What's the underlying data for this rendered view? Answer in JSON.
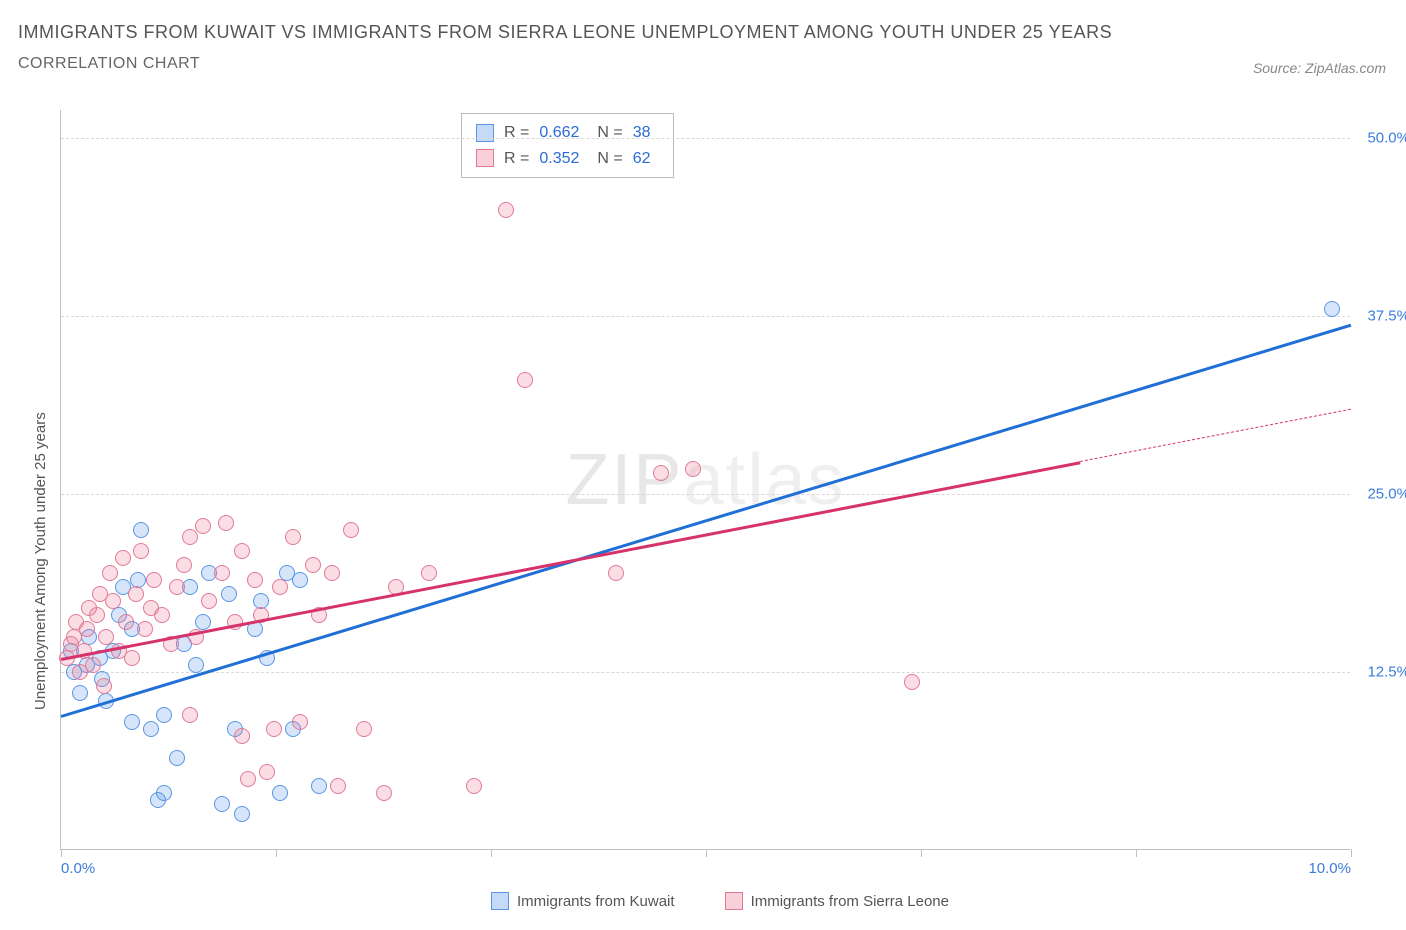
{
  "title": "IMMIGRANTS FROM KUWAIT VS IMMIGRANTS FROM SIERRA LEONE UNEMPLOYMENT AMONG YOUTH UNDER 25 YEARS",
  "subtitle": "CORRELATION CHART",
  "source": "Source: ZipAtlas.com",
  "watermark_a": "ZIP",
  "watermark_b": "atlas",
  "chart": {
    "type": "scatter",
    "background_color": "#ffffff",
    "grid_color": "#d8d8d8",
    "axis_color": "#c0c0c0",
    "ylabel": "Unemployment Among Youth under 25 years",
    "ylabel_fontsize": 15,
    "xlim": [
      0,
      10
    ],
    "ylim": [
      0,
      52
    ],
    "x_tick_positions": [
      0,
      1.67,
      3.33,
      5.0,
      6.67,
      8.33,
      10.0
    ],
    "x_tick_labels_shown": {
      "0": "0.0%",
      "10": "10.0%"
    },
    "y_grid_positions": [
      12.5,
      25,
      37.5,
      50
    ],
    "y_tick_labels": {
      "12.5": "12.5%",
      "25": "25.0%",
      "37.5": "37.5%",
      "50": "50.0%"
    },
    "tick_label_color": "#3b7dd8",
    "marker_radius": 8,
    "marker_border_width": 1.5,
    "series": [
      {
        "name": "Immigrants from Kuwait",
        "fill": "rgba(90,150,230,0.25)",
        "stroke": "#5a96e6",
        "legend_swatch_fill": "rgba(90,150,230,0.35)",
        "legend_swatch_border": "#5a96e6",
        "R": "0.662",
        "N": "38",
        "trend": {
          "x1": 0.0,
          "y1": 9.5,
          "x2": 10.0,
          "y2": 37.0,
          "color": "#1f6fd6",
          "width": 3,
          "x_solid_end": 10.0
        },
        "points": [
          [
            0.08,
            14.0
          ],
          [
            0.1,
            12.5
          ],
          [
            0.15,
            11.0
          ],
          [
            0.2,
            13.0
          ],
          [
            0.22,
            15.0
          ],
          [
            0.3,
            13.5
          ],
          [
            0.32,
            12.0
          ],
          [
            0.35,
            10.5
          ],
          [
            0.4,
            14.0
          ],
          [
            0.45,
            16.5
          ],
          [
            0.48,
            18.5
          ],
          [
            0.55,
            15.5
          ],
          [
            0.6,
            19.0
          ],
          [
            0.62,
            22.5
          ],
          [
            0.7,
            8.5
          ],
          [
            0.75,
            3.5
          ],
          [
            0.8,
            4.0
          ],
          [
            0.8,
            9.5
          ],
          [
            0.9,
            6.5
          ],
          [
            0.95,
            14.5
          ],
          [
            1.0,
            18.5
          ],
          [
            1.1,
            16.0
          ],
          [
            1.15,
            19.5
          ],
          [
            1.25,
            3.2
          ],
          [
            1.35,
            8.5
          ],
          [
            1.4,
            2.5
          ],
          [
            1.5,
            15.5
          ],
          [
            1.55,
            17.5
          ],
          [
            1.7,
            4.0
          ],
          [
            1.75,
            19.5
          ],
          [
            1.8,
            8.5
          ],
          [
            1.85,
            19.0
          ],
          [
            2.0,
            4.5
          ],
          [
            1.6,
            13.5
          ],
          [
            1.3,
            18.0
          ],
          [
            1.05,
            13.0
          ],
          [
            0.55,
            9.0
          ],
          [
            9.85,
            38.0
          ]
        ]
      },
      {
        "name": "Immigrants from Sierra Leone",
        "fill": "rgba(235,120,150,0.25)",
        "stroke": "#e27a96",
        "legend_swatch_fill": "rgba(235,120,150,0.35)",
        "legend_swatch_border": "#e27a96",
        "R": "0.352",
        "N": "62",
        "trend": {
          "x1": 0.0,
          "y1": 13.5,
          "x2": 10.0,
          "y2": 31.0,
          "color": "#d6336c",
          "width": 2.5,
          "x_solid_end": 7.9
        },
        "points": [
          [
            0.05,
            13.5
          ],
          [
            0.08,
            14.5
          ],
          [
            0.1,
            15.0
          ],
          [
            0.12,
            16.0
          ],
          [
            0.15,
            12.5
          ],
          [
            0.18,
            14.0
          ],
          [
            0.2,
            15.5
          ],
          [
            0.22,
            17.0
          ],
          [
            0.25,
            13.0
          ],
          [
            0.28,
            16.5
          ],
          [
            0.3,
            18.0
          ],
          [
            0.33,
            11.5
          ],
          [
            0.35,
            15.0
          ],
          [
            0.38,
            19.5
          ],
          [
            0.4,
            17.5
          ],
          [
            0.45,
            14.0
          ],
          [
            0.48,
            20.5
          ],
          [
            0.5,
            16.0
          ],
          [
            0.55,
            13.5
          ],
          [
            0.58,
            18.0
          ],
          [
            0.62,
            21.0
          ],
          [
            0.65,
            15.5
          ],
          [
            0.7,
            17.0
          ],
          [
            0.72,
            19.0
          ],
          [
            0.78,
            16.5
          ],
          [
            0.85,
            14.5
          ],
          [
            0.9,
            18.5
          ],
          [
            0.95,
            20.0
          ],
          [
            1.0,
            22.0
          ],
          [
            1.1,
            22.8
          ],
          [
            1.05,
            15.0
          ],
          [
            1.15,
            17.5
          ],
          [
            1.25,
            19.5
          ],
          [
            1.28,
            23.0
          ],
          [
            1.35,
            16.0
          ],
          [
            1.4,
            21.0
          ],
          [
            1.4,
            8.0
          ],
          [
            1.45,
            5.0
          ],
          [
            1.5,
            19.0
          ],
          [
            1.55,
            16.5
          ],
          [
            1.6,
            5.5
          ],
          [
            1.65,
            8.5
          ],
          [
            1.7,
            18.5
          ],
          [
            1.8,
            22.0
          ],
          [
            1.85,
            9.0
          ],
          [
            1.95,
            20.0
          ],
          [
            2.0,
            16.5
          ],
          [
            2.1,
            19.5
          ],
          [
            2.25,
            22.5
          ],
          [
            2.35,
            8.5
          ],
          [
            2.15,
            4.5
          ],
          [
            2.6,
            18.5
          ],
          [
            2.5,
            4.0
          ],
          [
            2.85,
            19.5
          ],
          [
            3.2,
            4.5
          ],
          [
            3.45,
            45.0
          ],
          [
            3.6,
            33.0
          ],
          [
            4.3,
            19.5
          ],
          [
            4.65,
            26.5
          ],
          [
            4.9,
            26.8
          ],
          [
            6.6,
            11.8
          ],
          [
            1.0,
            9.5
          ]
        ]
      }
    ],
    "stats_box": {
      "R_label": "R =",
      "N_label": "N ="
    },
    "bottom_legend_labels": [
      "Immigrants from Kuwait",
      "Immigrants from Sierra Leone"
    ]
  }
}
